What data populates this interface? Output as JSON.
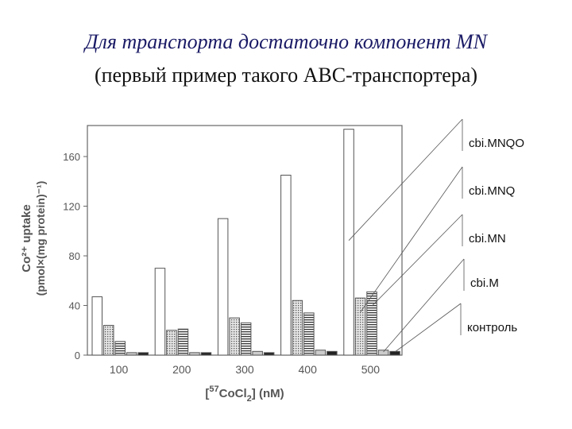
{
  "slide": {
    "title_line1": "Для транспорта достаточно компонент MN",
    "title_line2": "(первый пример такого ABC-транспортера)"
  },
  "chart_data": {
    "type": "bar",
    "categories": [
      "100",
      "200",
      "300",
      "400",
      "500"
    ],
    "xlabel_parts": [
      "[",
      "57",
      "CoCl",
      "2",
      "] (nM)"
    ],
    "ylabel_line1": "Co²⁺ uptake",
    "ylabel_line2": "(pmol×(mg protein)⁻¹)",
    "yticks": [
      "0",
      "40",
      "80",
      "120",
      "160"
    ],
    "ylim": [
      0,
      185
    ],
    "series": [
      {
        "name": "cbi.MNQO",
        "values": [
          47,
          70,
          110,
          145,
          182
        ]
      },
      {
        "name": "cbi.MNQ",
        "values": [
          24,
          20,
          30,
          44,
          46
        ]
      },
      {
        "name": "cbi.MN",
        "values": [
          11,
          21,
          26,
          34,
          51
        ]
      },
      {
        "name": "cbi.M",
        "values": [
          2,
          2,
          3,
          4,
          4
        ]
      },
      {
        "name": "контроль",
        "values": [
          2,
          2,
          2,
          3,
          3
        ]
      }
    ],
    "series_fills": [
      "#ffffff",
      "#b8b8b8",
      "#8a8a8a",
      "#cccccc",
      "#222222"
    ],
    "legend_placement": "right",
    "grid": false
  }
}
